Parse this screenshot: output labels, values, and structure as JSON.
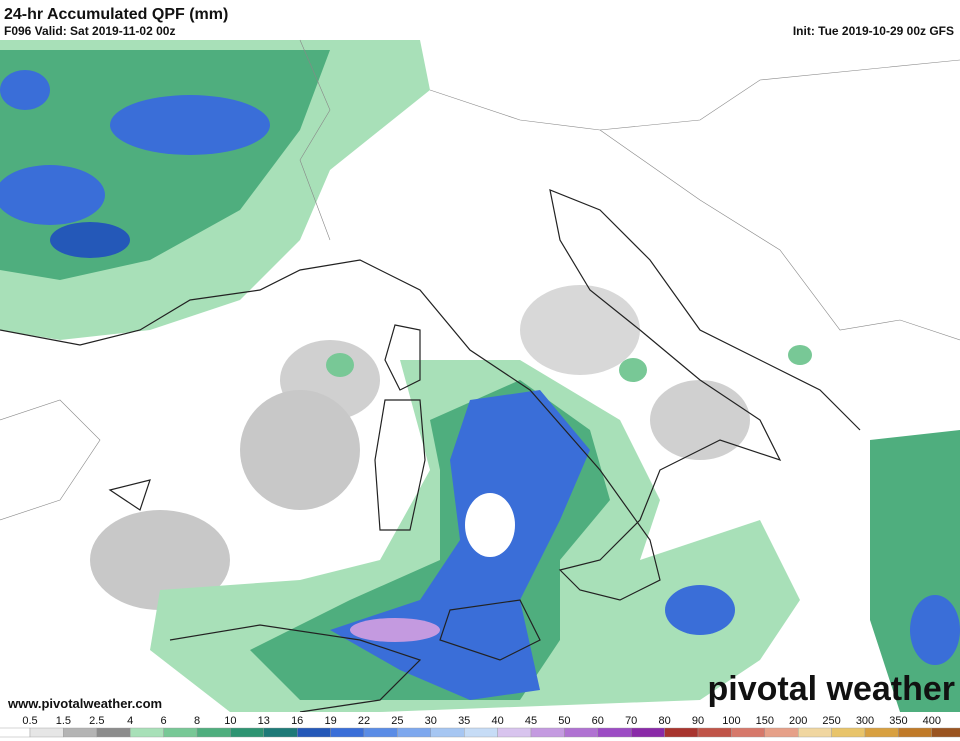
{
  "header": {
    "title": "24-hr Accumulated QPF (mm)",
    "valid": "F096 Valid: Sat 2019-11-02 00z",
    "init": "Init: Tue 2019-10-29 00z GFS"
  },
  "footer": {
    "url": "www.pivotalweather.com",
    "watermark": "pivotal weather"
  },
  "colorbar": {
    "labels": [
      0.5,
      1.5,
      2.5,
      4,
      6,
      8,
      10,
      13,
      16,
      19,
      22,
      25,
      30,
      35,
      40,
      45,
      50,
      60,
      70,
      80,
      90,
      100,
      150,
      200,
      250,
      300,
      350,
      400
    ],
    "colors": [
      "#ffffff",
      "#e6e6e6",
      "#b4b4b4",
      "#8c8c8c",
      "#a8e0b8",
      "#78c896",
      "#4fae7e",
      "#2e9472",
      "#1e7a78",
      "#2458b8",
      "#3a6ed8",
      "#5a8ce6",
      "#7ea8ee",
      "#a6c6f2",
      "#c6dcf6",
      "#d8c4ee",
      "#c49ae0",
      "#b072d2",
      "#9c4cc4",
      "#8a2aa8",
      "#a8342e",
      "#c05448",
      "#d6786a",
      "#e6a088",
      "#f0d6a0",
      "#e8c46a",
      "#d8a040",
      "#c07a28",
      "#9a5420"
    ]
  }
}
